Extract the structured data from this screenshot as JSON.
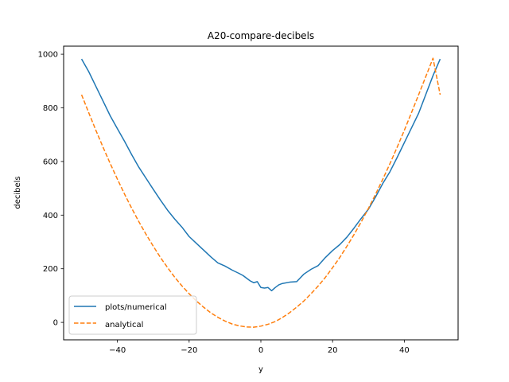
{
  "chart_data": {
    "type": "line",
    "title": "A20-compare-decibels",
    "xlabel": "y",
    "ylabel": "decibels",
    "xlim": [
      -55,
      55
    ],
    "ylim": [
      -65,
      1030
    ],
    "xticks": [
      -40,
      -20,
      0,
      20,
      40
    ],
    "yticks": [
      0,
      200,
      400,
      600,
      800,
      1000
    ],
    "grid": false,
    "legend_position": "lower-left",
    "series": [
      {
        "name": "plots/numerical",
        "style": "solid",
        "color": "#1f77b4",
        "x": [
          -50,
          -48,
          -46,
          -44,
          -42,
          -40,
          -38,
          -36,
          -34,
          -32,
          -30,
          -28,
          -26,
          -24,
          -22,
          -20,
          -18,
          -16,
          -14,
          -12,
          -10,
          -8,
          -6,
          -5,
          -4,
          -3,
          -2,
          -1,
          0,
          1,
          2,
          3,
          4,
          5,
          6,
          8,
          10,
          12,
          14,
          16,
          18,
          20,
          22,
          24,
          26,
          28,
          30,
          32,
          34,
          36,
          38,
          40,
          42,
          44,
          46,
          48,
          50
        ],
        "y": [
          982,
          935,
          880,
          825,
          770,
          722,
          675,
          625,
          578,
          537,
          496,
          456,
          418,
          385,
          355,
          320,
          295,
          270,
          245,
          222,
          210,
          195,
          182,
          175,
          165,
          155,
          148,
          152,
          130,
          128,
          130,
          118,
          130,
          140,
          145,
          150,
          152,
          180,
          198,
          212,
          242,
          268,
          290,
          318,
          352,
          388,
          422,
          468,
          518,
          562,
          615,
          670,
          725,
          780,
          850,
          920,
          982
        ]
      },
      {
        "name": "analytical",
        "style": "dashed",
        "color": "#ff7f0e",
        "x": [
          -50,
          -48,
          -46,
          -44,
          -42,
          -40,
          -38,
          -36,
          -34,
          -32,
          -30,
          -28,
          -26,
          -24,
          -22,
          -20,
          -18,
          -16,
          -14,
          -12,
          -10,
          -8,
          -6,
          -4,
          -2,
          0,
          2,
          4,
          6,
          8,
          10,
          12,
          14,
          16,
          18,
          20,
          22,
          24,
          26,
          28,
          30,
          32,
          34,
          36,
          38,
          40,
          42,
          44,
          46,
          48,
          50
        ],
        "y": [
          849,
          782,
          716,
          653,
          592,
          534,
          478,
          425,
          375,
          328,
          284,
          242,
          204,
          168,
          136,
          107,
          80,
          57,
          36,
          19,
          5,
          -6,
          -13,
          -17,
          -18,
          -14,
          -7,
          3,
          18,
          36,
          57,
          80,
          107,
          136,
          168,
          204,
          242,
          284,
          328,
          375,
          425,
          478,
          534,
          592,
          653,
          716,
          782,
          849,
          917,
          985,
          849
        ]
      }
    ]
  }
}
